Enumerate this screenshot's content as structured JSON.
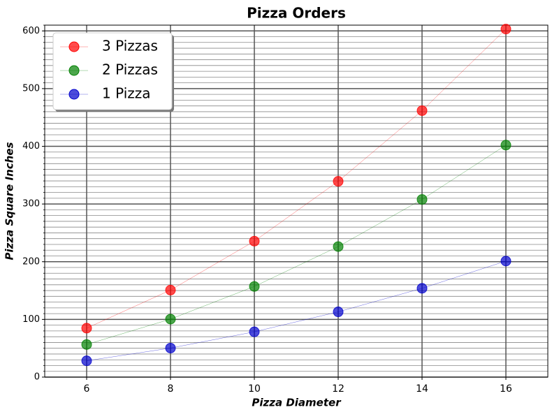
{
  "chart_data": {
    "type": "line",
    "title": "Pizza Orders",
    "x_label": "Pizza Diameter",
    "y_label": "Pizza Square Inches",
    "x": [
      6,
      8,
      10,
      12,
      14,
      16
    ],
    "series": [
      {
        "name": "3 Pizzas",
        "color": "#ff0000",
        "values": [
          84.8,
          150.8,
          235.6,
          339.3,
          461.8,
          603.2
        ]
      },
      {
        "name": "2 Pizzas",
        "color": "#008000",
        "values": [
          56.5,
          100.5,
          157.1,
          226.2,
          307.9,
          402.1
        ]
      },
      {
        "name": "1 Pizza",
        "color": "#0000cc",
        "values": [
          28.3,
          50.3,
          78.5,
          113.1,
          153.9,
          201.1
        ]
      }
    ],
    "xlim": [
      5,
      17
    ],
    "xticks": [
      6,
      8,
      10,
      12,
      14,
      16
    ],
    "ylim": [
      0,
      610
    ],
    "yticks": [
      0,
      100,
      200,
      300,
      400,
      500,
      600
    ],
    "y_minor_step": 10,
    "grid": true,
    "legend": "upper left"
  }
}
